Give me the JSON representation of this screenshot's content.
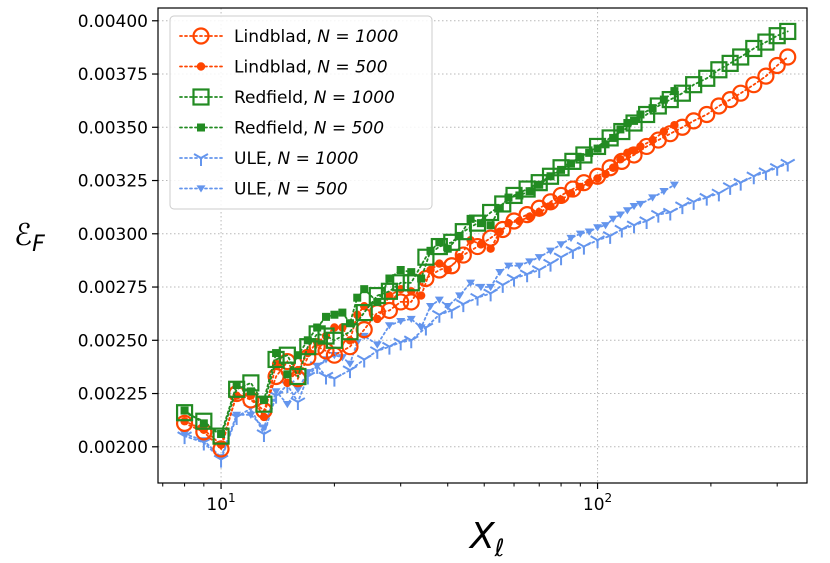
{
  "chart_data": {
    "type": "line",
    "xscale": "log",
    "xlim": [
      6.8,
      360
    ],
    "ylim": [
      0.00183,
      0.00406
    ],
    "xlabel": "X_ℓ",
    "xlabel_main": "X",
    "xlabel_sub": "ℓ",
    "ylabel": "ℰ_F",
    "ylabel_main": "ℰ",
    "ylabel_sub": "F",
    "grid": true,
    "legend_position": "top-left",
    "x_ticks": [
      {
        "base": "10",
        "exp": "1",
        "value": 10
      },
      {
        "base": "10",
        "exp": "2",
        "value": 100
      }
    ],
    "y_ticks": [
      "0.00200",
      "0.00225",
      "0.00250",
      "0.00275",
      "0.00300",
      "0.00325",
      "0.00350",
      "0.00375",
      "0.00400"
    ],
    "y_tick_values": [
      0.002,
      0.00225,
      0.0025,
      0.00275,
      0.003,
      0.00325,
      0.0035,
      0.00375,
      0.004
    ],
    "series": [
      {
        "name": "Lindblad, N = 1000",
        "label_text": "Lindblad, ",
        "label_n": "N = 1000",
        "color": "#ff4500",
        "marker": "circle-open",
        "x": [
          8,
          9,
          10,
          11,
          12,
          13,
          14,
          15,
          16,
          17,
          18,
          19,
          20,
          22,
          24,
          26,
          28,
          30,
          32,
          35,
          38,
          41,
          44,
          48,
          52,
          56,
          60,
          65,
          70,
          75,
          80,
          86,
          92,
          100,
          108,
          116,
          125,
          135,
          145,
          156,
          168,
          180,
          195,
          210,
          225,
          240,
          260,
          280,
          300,
          320
        ],
        "y": [
          0.00211,
          0.00207,
          0.00199,
          0.00225,
          0.00222,
          0.00217,
          0.00233,
          0.0024,
          0.00232,
          0.00242,
          0.00247,
          0.00245,
          0.00243,
          0.00247,
          0.00255,
          0.00263,
          0.00264,
          0.00268,
          0.00268,
          0.00279,
          0.00283,
          0.00285,
          0.0029,
          0.00294,
          0.00298,
          0.00302,
          0.00306,
          0.00309,
          0.00312,
          0.00315,
          0.00318,
          0.00321,
          0.00324,
          0.00327,
          0.00331,
          0.00334,
          0.00337,
          0.00341,
          0.00344,
          0.00347,
          0.0035,
          0.00353,
          0.00356,
          0.0036,
          0.00363,
          0.00366,
          0.0037,
          0.00374,
          0.00379,
          0.00383
        ]
      },
      {
        "name": "Lindblad, N = 500",
        "label_text": "Lindblad, ",
        "label_n": "N = 500",
        "color": "#ff4500",
        "marker": "circle-filled",
        "x": [
          8,
          9,
          10,
          11,
          12,
          13,
          14,
          15,
          16,
          17,
          18,
          19,
          20,
          21,
          22,
          23,
          24,
          26,
          28,
          30,
          32,
          34,
          36,
          38,
          40,
          43,
          46,
          49,
          52,
          55,
          58,
          62,
          66,
          70,
          75,
          80,
          85,
          90,
          95,
          100,
          105,
          110,
          115,
          120,
          125,
          130,
          140,
          150,
          160
        ],
        "y": [
          0.00212,
          0.00208,
          0.00201,
          0.00224,
          0.00224,
          0.00214,
          0.00239,
          0.0023,
          0.00236,
          0.00244,
          0.00249,
          0.00252,
          0.00256,
          0.00256,
          0.0025,
          0.00262,
          0.00266,
          0.0026,
          0.00271,
          0.00274,
          0.00273,
          0.00271,
          0.00283,
          0.00286,
          0.00283,
          0.00289,
          0.00297,
          0.00295,
          0.00293,
          0.00301,
          0.00305,
          0.00306,
          0.00308,
          0.0031,
          0.00313,
          0.00316,
          0.00319,
          0.00322,
          0.00324,
          0.00326,
          0.00328,
          0.00331,
          0.00335,
          0.00338,
          0.00339,
          0.00341,
          0.00344,
          0.00348,
          0.00351
        ]
      },
      {
        "name": "Redfield, N = 1000",
        "label_text": "Redfield, ",
        "label_n": "N = 1000",
        "color": "#228b22",
        "marker": "square-open",
        "x": [
          8,
          9,
          10,
          11,
          12,
          13,
          14,
          15,
          16,
          17,
          18,
          19,
          20,
          22,
          24,
          26,
          28,
          30,
          32,
          35,
          38,
          41,
          44,
          48,
          52,
          56,
          60,
          65,
          70,
          75,
          80,
          86,
          92,
          100,
          108,
          116,
          125,
          135,
          145,
          156,
          168,
          180,
          195,
          210,
          225,
          240,
          260,
          280,
          300,
          320
        ],
        "y": [
          0.00216,
          0.00212,
          0.00205,
          0.00227,
          0.0023,
          0.0022,
          0.00241,
          0.00243,
          0.00233,
          0.00247,
          0.00253,
          0.00252,
          0.0025,
          0.00254,
          0.00263,
          0.00271,
          0.00273,
          0.00277,
          0.00277,
          0.00289,
          0.00294,
          0.00296,
          0.00301,
          0.00305,
          0.0031,
          0.00314,
          0.00318,
          0.00321,
          0.00324,
          0.00327,
          0.00331,
          0.00334,
          0.00337,
          0.00341,
          0.00345,
          0.00348,
          0.00352,
          0.00356,
          0.0036,
          0.00363,
          0.00366,
          0.0037,
          0.00373,
          0.00377,
          0.0038,
          0.00383,
          0.00387,
          0.0039,
          0.00393,
          0.00395
        ]
      },
      {
        "name": "Redfield, N = 500",
        "label_text": "Redfield, ",
        "label_n": "N = 500",
        "color": "#228b22",
        "marker": "square-filled",
        "x": [
          8,
          9,
          10,
          11,
          12,
          13,
          14,
          15,
          16,
          17,
          18,
          19,
          20,
          21,
          22,
          23,
          24,
          26,
          28,
          30,
          32,
          34,
          36,
          38,
          40,
          43,
          46,
          49,
          52,
          55,
          58,
          62,
          66,
          70,
          75,
          80,
          85,
          90,
          95,
          100,
          105,
          110,
          115,
          120,
          125,
          130,
          140,
          150,
          160
        ],
        "y": [
          0.00217,
          0.00211,
          0.00206,
          0.00229,
          0.00226,
          0.00222,
          0.00244,
          0.00234,
          0.00243,
          0.0025,
          0.00256,
          0.00261,
          0.00262,
          0.00263,
          0.00258,
          0.0027,
          0.00274,
          0.00268,
          0.00279,
          0.00283,
          0.00282,
          0.00279,
          0.00292,
          0.00296,
          0.00293,
          0.00299,
          0.00307,
          0.00305,
          0.00304,
          0.00312,
          0.00317,
          0.00318,
          0.0032,
          0.00323,
          0.00327,
          0.0033,
          0.00333,
          0.00336,
          0.00338,
          0.0034,
          0.00342,
          0.00345,
          0.00349,
          0.00352,
          0.00353,
          0.00356,
          0.00359,
          0.00363,
          0.00367
        ]
      },
      {
        "name": "ULE, N = 1000",
        "label_text": "ULE, ",
        "label_n": "N = 1000",
        "color": "#6495ed",
        "marker": "tri-open",
        "x": [
          8,
          9,
          10,
          11,
          12,
          13,
          14,
          15,
          16,
          17,
          18,
          19,
          20,
          22,
          24,
          26,
          28,
          30,
          32,
          35,
          38,
          41,
          44,
          48,
          52,
          56,
          60,
          65,
          70,
          75,
          80,
          86,
          92,
          100,
          108,
          116,
          125,
          135,
          145,
          156,
          168,
          180,
          195,
          210,
          225,
          240,
          260,
          280,
          300,
          320
        ],
        "y": [
          0.00205,
          0.00202,
          0.00194,
          0.00214,
          0.00218,
          0.00206,
          0.00224,
          0.00229,
          0.00221,
          0.00233,
          0.00238,
          0.00233,
          0.00232,
          0.00236,
          0.00241,
          0.00245,
          0.00247,
          0.00249,
          0.0025,
          0.00256,
          0.00262,
          0.00264,
          0.00267,
          0.0027,
          0.00272,
          0.00276,
          0.00279,
          0.00281,
          0.00283,
          0.00286,
          0.00289,
          0.00292,
          0.00294,
          0.00297,
          0.00299,
          0.00302,
          0.00304,
          0.00306,
          0.00309,
          0.0031,
          0.00313,
          0.00315,
          0.00317,
          0.00319,
          0.00322,
          0.00324,
          0.00327,
          0.00329,
          0.00331,
          0.00333
        ]
      },
      {
        "name": "ULE, N = 500",
        "label_text": "ULE, ",
        "label_n": "N = 500",
        "color": "#6495ed",
        "marker": "tri-down",
        "x": [
          8,
          9,
          10,
          11,
          12,
          13,
          14,
          15,
          16,
          17,
          18,
          19,
          20,
          21,
          22,
          23,
          24,
          26,
          28,
          30,
          32,
          34,
          36,
          38,
          40,
          43,
          46,
          49,
          52,
          55,
          58,
          62,
          66,
          70,
          75,
          80,
          85,
          90,
          95,
          100,
          105,
          110,
          115,
          120,
          125,
          130,
          140,
          150,
          160
        ],
        "y": [
          0.00206,
          0.00203,
          0.00195,
          0.00215,
          0.00215,
          0.00209,
          0.00226,
          0.0022,
          0.00227,
          0.00235,
          0.00238,
          0.00241,
          0.00243,
          0.00242,
          0.00239,
          0.00249,
          0.00252,
          0.00248,
          0.00257,
          0.00259,
          0.0026,
          0.00256,
          0.00266,
          0.00269,
          0.00266,
          0.00271,
          0.00277,
          0.00275,
          0.00275,
          0.00282,
          0.00285,
          0.00285,
          0.00287,
          0.00289,
          0.00292,
          0.00295,
          0.00298,
          0.003,
          0.00301,
          0.00303,
          0.00304,
          0.00307,
          0.00309,
          0.00311,
          0.00313,
          0.00314,
          0.00317,
          0.0032,
          0.00323
        ]
      }
    ]
  }
}
